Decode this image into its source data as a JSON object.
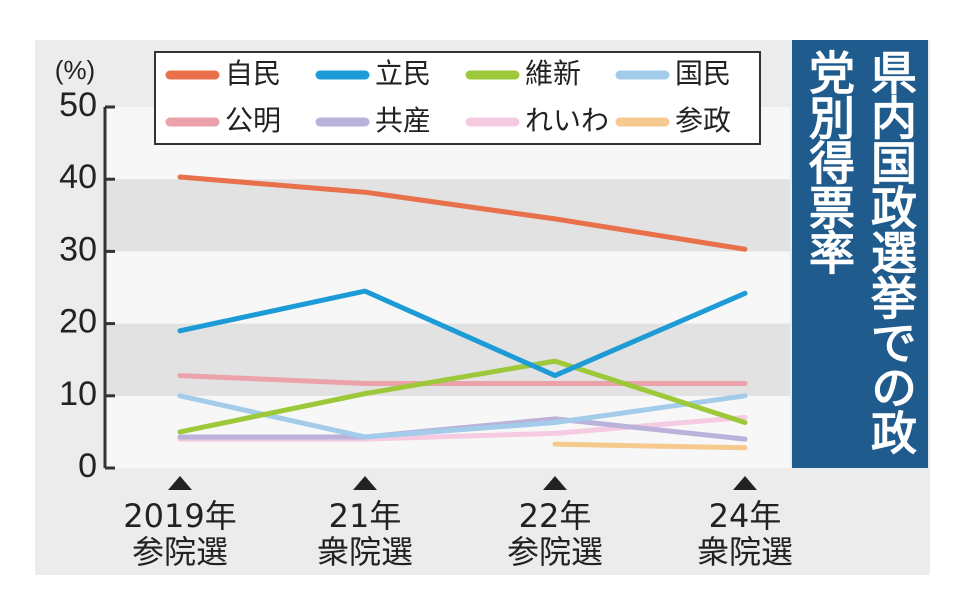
{
  "chart_data": {
    "type": "line",
    "title": "県内国政選挙での政党別得票率",
    "ylabel": "(%)",
    "categories": [
      "2019年",
      "21年",
      "22年",
      "24年"
    ],
    "election_types": [
      "参院選",
      "衆院選",
      "参院選",
      "衆院選"
    ],
    "ylim": [
      0,
      50
    ],
    "yticks": [
      0,
      10,
      20,
      30,
      40,
      50
    ],
    "series": [
      {
        "name": "自民",
        "color": "#e8714c",
        "values": [
          40.3,
          38.2,
          34.5,
          30.3
        ]
      },
      {
        "name": "立民",
        "color": "#1d9bd6",
        "values": [
          19,
          24.5,
          12.8,
          24.2
        ]
      },
      {
        "name": "維新",
        "color": "#9dc83a",
        "values": [
          5,
          10.3,
          14.8,
          6.3
        ]
      },
      {
        "name": "国民",
        "color": "#a3cbea",
        "values": [
          10,
          4.3,
          6.3,
          10
        ]
      },
      {
        "name": "公明",
        "color": "#eba2aa",
        "values": [
          12.8,
          11.7,
          11.7,
          11.7
        ]
      },
      {
        "name": "共産",
        "color": "#bab2da",
        "values": [
          4.3,
          4.3,
          6.8,
          4
        ]
      },
      {
        "name": "れいわ",
        "color": "#f6cbe2",
        "values": [
          4,
          4,
          4.8,
          7
        ]
      },
      {
        "name": "参政",
        "color": "#f6c98f",
        "values": [
          null,
          null,
          3.3,
          2.8
        ]
      }
    ]
  }
}
